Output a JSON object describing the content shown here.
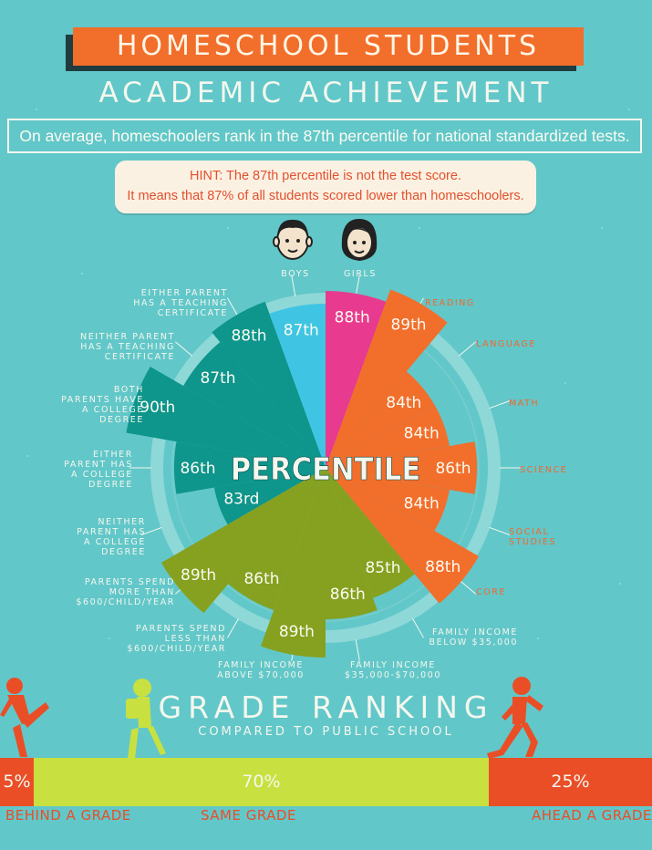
{
  "header": {
    "title": "HOMESCHOOL STUDENTS",
    "subtitle": "ACADEMIC ACHIEVEMENT",
    "stat": "On average, homeschoolers rank in the 87th percentile for national standardized tests.",
    "hint_line1": "HINT: The 87th percentile is not the test score.",
    "hint_line2": "It means that 87% of all students scored lower than homeschoolers."
  },
  "colors": {
    "background": "#62c7c9",
    "orange": "#f26e2b",
    "pink": "#e83a8e",
    "cyan": "#3fc5e3",
    "teal": "#0e958c",
    "olive": "#86a11f",
    "red": "#ea4e27",
    "lime": "#c8e140",
    "ring": "#8ed8d7",
    "cream": "#f4f7ee"
  },
  "icons": [
    "boy-face-icon",
    "girl-face-icon",
    "child-runner-figure",
    "child-walker-figure",
    "child-stretch-figure"
  ],
  "chart_data": {
    "type": "pie",
    "center_label": "PERCENTILE",
    "slices": [
      {
        "category": "GIRLS",
        "value": 88,
        "label": "88th",
        "color": "#e83a8e"
      },
      {
        "category": "READING",
        "value": 89,
        "label": "89th",
        "color": "#f26e2b"
      },
      {
        "category": "LANGUAGE",
        "value": 84,
        "label": "84th",
        "color": "#f26e2b"
      },
      {
        "category": "MATH",
        "value": 84,
        "label": "84th",
        "color": "#f26e2b"
      },
      {
        "category": "SCIENCE",
        "value": 86,
        "label": "86th",
        "color": "#f26e2b"
      },
      {
        "category": "SOCIAL STUDIES",
        "value": 84,
        "label": "84th",
        "color": "#f26e2b"
      },
      {
        "category": "CORE",
        "value": 88,
        "label": "88th",
        "color": "#f26e2b"
      },
      {
        "category": "FAMILY INCOME BELOW $35,000",
        "value": 85,
        "label": "85th",
        "color": "#86a11f"
      },
      {
        "category": "FAMILY INCOME $35,000-$70,000",
        "value": 86,
        "label": "86th",
        "color": "#86a11f"
      },
      {
        "category": "FAMILY INCOME ABOVE $70,000",
        "value": 89,
        "label": "89th",
        "color": "#86a11f"
      },
      {
        "category": "PARENTS SPEND LESS THAN $600/CHILD/YEAR",
        "value": 86,
        "label": "86th",
        "color": "#86a11f"
      },
      {
        "category": "PARENTS SPEND MORE THAN $600/CHILD/YEAR",
        "value": 89,
        "label": "89th",
        "color": "#86a11f"
      },
      {
        "category": "NEITHER PARENT HAS A COLLEGE DEGREE",
        "value": 83,
        "label": "83rd",
        "color": "#0e958c"
      },
      {
        "category": "EITHER PARENT HAS A COLLEGE DEGREE",
        "value": 86,
        "label": "86th",
        "color": "#0e958c"
      },
      {
        "category": "BOTH PARENTS HAVE A COLLEGE DEGREE",
        "value": 90,
        "label": "90th",
        "color": "#0e958c"
      },
      {
        "category": "NEITHER PARENT HAS A TEACHING CERTIFICATE",
        "value": 87,
        "label": "87th",
        "color": "#0e958c"
      },
      {
        "category": "EITHER PARENT HAS A TEACHING CERTIFICATE",
        "value": 88,
        "label": "88th",
        "color": "#0e958c"
      },
      {
        "category": "BOYS",
        "value": 87,
        "label": "87th",
        "color": "#3fc5e3"
      }
    ],
    "labels": {
      "boys": "BOYS",
      "girls": "GIRLS",
      "reading": "READING",
      "language": "LANGUAGE",
      "math": "MATH",
      "science": "SCIENCE",
      "social_1": "SOCIAL",
      "social_2": "STUDIES",
      "core": "CORE",
      "inc_below_1": "FAMILY INCOME",
      "inc_below_2": "BELOW $35,000",
      "inc_mid_1": "FAMILY INCOME",
      "inc_mid_2": "$35,000-$70,000",
      "inc_above_1": "FAMILY INCOME",
      "inc_above_2": "ABOVE $70,000",
      "less_1": "PARENTS SPEND",
      "less_2": "LESS THAN",
      "less_3": "$600/CHILD/YEAR",
      "more_1": "PARENTS SPEND",
      "more_2": "MORE THAN",
      "more_3": "$600/CHILD/YEAR",
      "neither_deg_1": "NEITHER",
      "neither_deg_2": "PARENT HAS",
      "neither_deg_3": "A COLLEGE",
      "neither_deg_4": "DEGREE",
      "either_deg_1": "EITHER",
      "either_deg_2": "PARENT HAS",
      "either_deg_3": "A COLLEGE",
      "either_deg_4": "DEGREE",
      "both_deg_1": "BOTH",
      "both_deg_2": "PARENTS HAVE",
      "both_deg_3": "A COLLEGE",
      "both_deg_4": "DEGREE",
      "neither_cert_1": "NEITHER PARENT",
      "neither_cert_2": "HAS A TEACHING",
      "neither_cert_3": "CERTIFICATE",
      "either_cert_1": "EITHER PARENT",
      "either_cert_2": "HAS A TEACHING",
      "either_cert_3": "CERTIFICATE"
    }
  },
  "grade": {
    "title": "GRADE RANKING",
    "subtitle": "COMPARED TO PUBLIC SCHOOL",
    "bar": [
      {
        "label": "BEHIND A GRADE",
        "percent": "5%",
        "value": 5
      },
      {
        "label": "SAME GRADE",
        "percent": "70%",
        "value": 70
      },
      {
        "label": "AHEAD A GRADE",
        "percent": "25%",
        "value": 25
      }
    ]
  }
}
